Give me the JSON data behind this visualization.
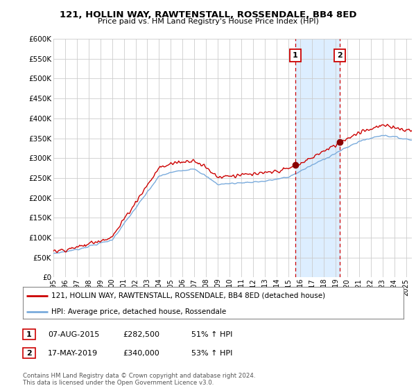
{
  "title": "121, HOLLIN WAY, RAWTENSTALL, ROSSENDALE, BB4 8ED",
  "subtitle": "Price paid vs. HM Land Registry's House Price Index (HPI)",
  "ylim_max": 600000,
  "yticks": [
    0,
    50000,
    100000,
    150000,
    200000,
    250000,
    300000,
    350000,
    400000,
    450000,
    500000,
    550000,
    600000
  ],
  "xlim_start": 1995.0,
  "xlim_end": 2025.5,
  "sale1_date": 2015.58,
  "sale1_price": 282500,
  "sale2_date": 2019.37,
  "sale2_price": 340000,
  "red_line_color": "#cc0000",
  "blue_line_color": "#7aabdc",
  "shade_color": "#ddeeff",
  "vline_color": "#cc0000",
  "legend_label_red": "121, HOLLIN WAY, RAWTENSTALL, ROSSENDALE, BB4 8ED (detached house)",
  "legend_label_blue": "HPI: Average price, detached house, Rossendale",
  "table_row1": [
    "1",
    "07-AUG-2015",
    "£282,500",
    "51% ↑ HPI"
  ],
  "table_row2": [
    "2",
    "17-MAY-2019",
    "£340,000",
    "53% ↑ HPI"
  ],
  "footer": "Contains HM Land Registry data © Crown copyright and database right 2024.\nThis data is licensed under the Open Government Licence v3.0.",
  "background_color": "#ffffff",
  "grid_color": "#cccccc"
}
